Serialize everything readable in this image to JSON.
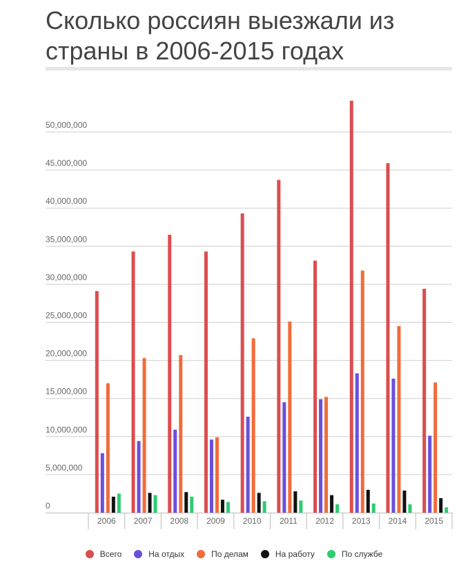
{
  "chart_data": {
    "type": "bar",
    "title": "Сколько россиян выезжали из страны в 2006-2015 годах",
    "categories": [
      "2006",
      "2007",
      "2008",
      "2009",
      "2010",
      "2011",
      "2012",
      "2013",
      "2014",
      "2015"
    ],
    "series": [
      {
        "name": "Всего",
        "color": "#dc4d4f",
        "values": [
          29100000,
          34300000,
          36500000,
          34300000,
          39300000,
          43700000,
          33100000,
          54100000,
          45900000,
          29400000
        ]
      },
      {
        "name": "На отдых",
        "color": "#6b4fdc",
        "values": [
          7800000,
          9400000,
          10900000,
          9600000,
          12600000,
          14500000,
          14900000,
          18300000,
          17600000,
          10100000
        ]
      },
      {
        "name": "По делам",
        "color": "#f26b3a",
        "values": [
          17000000,
          20300000,
          20700000,
          9900000,
          22900000,
          25100000,
          15200000,
          31800000,
          24500000,
          17100000
        ]
      },
      {
        "name": "На работу",
        "color": "#111111",
        "values": [
          2100000,
          2600000,
          2700000,
          1700000,
          2600000,
          2800000,
          2300000,
          3000000,
          2900000,
          1900000
        ]
      },
      {
        "name": "По службе",
        "color": "#2ecc71",
        "values": [
          2500000,
          2300000,
          2100000,
          1400000,
          1500000,
          1600000,
          1100000,
          1200000,
          1100000,
          700000
        ]
      }
    ],
    "yticks": [
      "0",
      "5,000,000",
      "10,000,000",
      "15,000,000",
      "20,000,000",
      "25,000,000",
      "30,000,000",
      "35,000,000",
      "40,000,000",
      "45,000,000",
      "50,000,000"
    ],
    "ylim": [
      0,
      55000000
    ],
    "grid": true,
    "legend_position": "bottom"
  }
}
